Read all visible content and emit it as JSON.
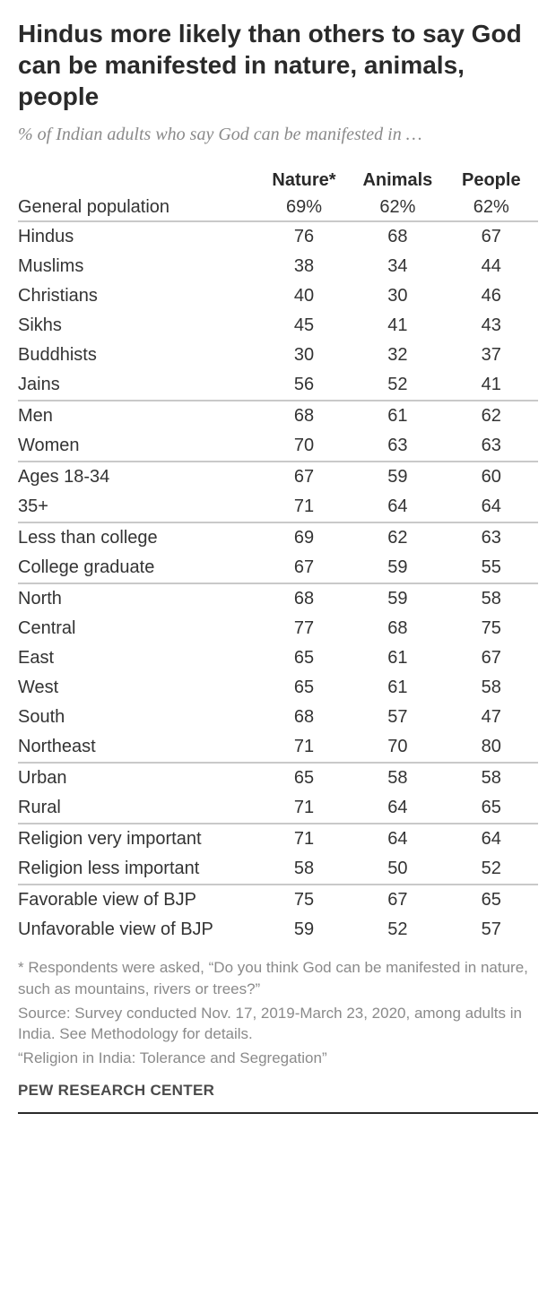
{
  "title": "Hindus more likely than others to say God can be manifested in nature, animals, people",
  "subtitle": "% of Indian adults who say God can be manifested in …",
  "columns": [
    "Nature*",
    "Animals",
    "People"
  ],
  "header_row": {
    "label": "General population",
    "values": [
      "69%",
      "62%",
      "62%"
    ]
  },
  "groups": [
    [
      {
        "label": "Hindus",
        "values": [
          76,
          68,
          67
        ]
      },
      {
        "label": "Muslims",
        "values": [
          38,
          34,
          44
        ]
      },
      {
        "label": "Christians",
        "values": [
          40,
          30,
          46
        ]
      },
      {
        "label": "Sikhs",
        "values": [
          45,
          41,
          43
        ]
      },
      {
        "label": "Buddhists",
        "values": [
          30,
          32,
          37
        ]
      },
      {
        "label": "Jains",
        "values": [
          56,
          52,
          41
        ]
      }
    ],
    [
      {
        "label": "Men",
        "values": [
          68,
          61,
          62
        ]
      },
      {
        "label": "Women",
        "values": [
          70,
          63,
          63
        ]
      }
    ],
    [
      {
        "label": "Ages 18-34",
        "values": [
          67,
          59,
          60
        ]
      },
      {
        "label": "35+",
        "values": [
          71,
          64,
          64
        ]
      }
    ],
    [
      {
        "label": "Less than college",
        "values": [
          69,
          62,
          63
        ]
      },
      {
        "label": "College graduate",
        "values": [
          67,
          59,
          55
        ]
      }
    ],
    [
      {
        "label": "North",
        "values": [
          68,
          59,
          58
        ]
      },
      {
        "label": "Central",
        "values": [
          77,
          68,
          75
        ]
      },
      {
        "label": "East",
        "values": [
          65,
          61,
          67
        ]
      },
      {
        "label": "West",
        "values": [
          65,
          61,
          58
        ]
      },
      {
        "label": "South",
        "values": [
          68,
          57,
          47
        ]
      },
      {
        "label": "Northeast",
        "values": [
          71,
          70,
          80
        ]
      }
    ],
    [
      {
        "label": "Urban",
        "values": [
          65,
          58,
          58
        ]
      },
      {
        "label": "Rural",
        "values": [
          71,
          64,
          65
        ]
      }
    ],
    [
      {
        "label": "Religion very important",
        "values": [
          71,
          64,
          64
        ]
      },
      {
        "label": "Religion less important",
        "values": [
          58,
          50,
          52
        ]
      }
    ],
    [
      {
        "label": "Favorable view of BJP",
        "values": [
          75,
          67,
          65
        ]
      },
      {
        "label": "Unfavorable view of BJP",
        "values": [
          59,
          52,
          57
        ]
      }
    ]
  ],
  "footnote1": "* Respondents were asked, “Do you think God can be manifested in nature, such as mountains, rivers or trees?”",
  "footnote2": "Source: Survey conducted Nov. 17, 2019-March 23, 2020, among adults in India. See Methodology for details.",
  "footnote3": "“Religion in India: Tolerance and Segregation”",
  "attribution": "PEW RESEARCH CENTER",
  "style": {
    "background_color": "#ffffff",
    "title_color": "#2a2a2a",
    "subtitle_color": "#8a8a8a",
    "body_text_color": "#333333",
    "group_divider_color": "#c9c9c9",
    "bottom_rule_color": "#2a2a2a",
    "title_fontsize": 28,
    "subtitle_fontsize": 20,
    "table_fontsize": 20,
    "footnote_fontsize": 17
  }
}
